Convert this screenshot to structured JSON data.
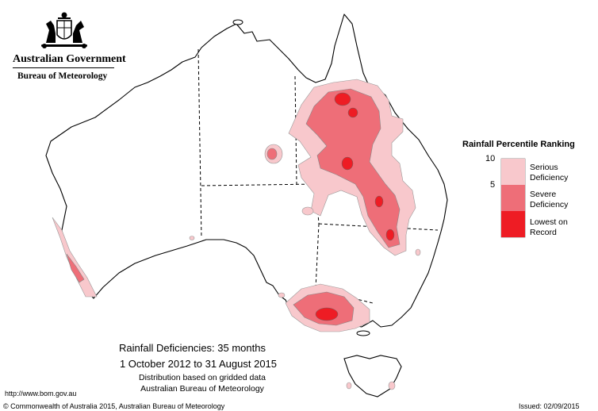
{
  "header": {
    "government": "Australian Government",
    "agency": "Bureau of Meteorology"
  },
  "legend": {
    "title": "Rainfall Percentile Ranking",
    "ticks": [
      "10",
      "5"
    ],
    "items": [
      {
        "label_line1": "Serious",
        "label_line2": "Deficiency",
        "color": "#f8c8cc"
      },
      {
        "label_line1": "Severe",
        "label_line2": "Deficiency",
        "color": "#ee6e78"
      },
      {
        "label_line1": "Lowest on",
        "label_line2": "Record",
        "color": "#ee1c24"
      }
    ]
  },
  "map_title": {
    "main": "Rainfall Deficiencies: 35 months",
    "dates": "1 October 2012 to 31 August 2015",
    "subtitle1": "Distribution based on gridded data",
    "subtitle2": "Australian Bureau of Meteorology"
  },
  "footer": {
    "url": "http://www.bom.gov.au",
    "copyright": "© Commonwealth of Australia 2015, Australian Bureau of Meteorology",
    "issued": "Issued: 02/09/2015"
  }
}
